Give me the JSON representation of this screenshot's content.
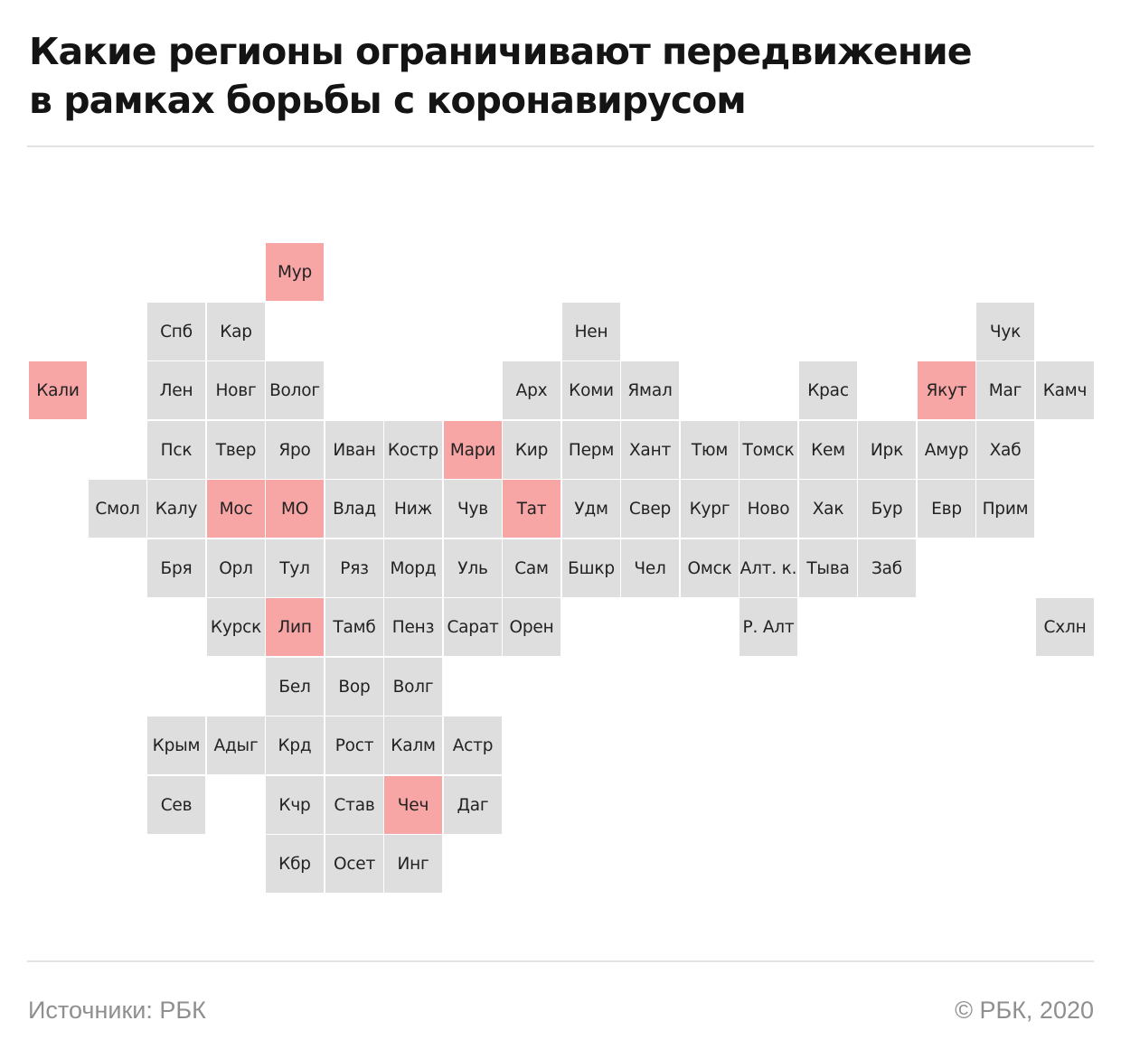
{
  "title": {
    "line1": "Какие регионы ограничивают передвижение",
    "line2": "в рамках борьбы с коронавирусом"
  },
  "colors": {
    "restricted": "#f7a5a5",
    "other": "#dedede"
  },
  "regions": [
    {
      "label": "Мур",
      "row": 0,
      "col": 4,
      "restricted": true
    },
    {
      "label": "Спб",
      "row": 1,
      "col": 2,
      "restricted": false
    },
    {
      "label": "Кар",
      "row": 1,
      "col": 3,
      "restricted": false
    },
    {
      "label": "Нен",
      "row": 1,
      "col": 9,
      "restricted": false
    },
    {
      "label": "Чук",
      "row": 1,
      "col": 16,
      "restricted": false
    },
    {
      "label": "Кали",
      "row": 2,
      "col": 0,
      "restricted": true
    },
    {
      "label": "Лен",
      "row": 2,
      "col": 2,
      "restricted": false
    },
    {
      "label": "Новг",
      "row": 2,
      "col": 3,
      "restricted": false
    },
    {
      "label": "Волог",
      "row": 2,
      "col": 4,
      "restricted": false
    },
    {
      "label": "Арх",
      "row": 2,
      "col": 8,
      "restricted": false
    },
    {
      "label": "Коми",
      "row": 2,
      "col": 9,
      "restricted": false
    },
    {
      "label": "Ямал",
      "row": 2,
      "col": 10,
      "restricted": false
    },
    {
      "label": "Крас",
      "row": 2,
      "col": 13,
      "restricted": false
    },
    {
      "label": "Якут",
      "row": 2,
      "col": 15,
      "restricted": true
    },
    {
      "label": "Маг",
      "row": 2,
      "col": 16,
      "restricted": false
    },
    {
      "label": "Камч",
      "row": 2,
      "col": 17,
      "restricted": false
    },
    {
      "label": "Пск",
      "row": 3,
      "col": 2,
      "restricted": false
    },
    {
      "label": "Твер",
      "row": 3,
      "col": 3,
      "restricted": false
    },
    {
      "label": "Яро",
      "row": 3,
      "col": 4,
      "restricted": false
    },
    {
      "label": "Иван",
      "row": 3,
      "col": 5,
      "restricted": false
    },
    {
      "label": "Костр",
      "row": 3,
      "col": 6,
      "restricted": false
    },
    {
      "label": "Мари",
      "row": 3,
      "col": 7,
      "restricted": true
    },
    {
      "label": "Кир",
      "row": 3,
      "col": 8,
      "restricted": false
    },
    {
      "label": "Перм",
      "row": 3,
      "col": 9,
      "restricted": false
    },
    {
      "label": "Хант",
      "row": 3,
      "col": 10,
      "restricted": false
    },
    {
      "label": "Тюм",
      "row": 3,
      "col": 11,
      "restricted": false
    },
    {
      "label": "Томск",
      "row": 3,
      "col": 12,
      "restricted": false
    },
    {
      "label": "Кем",
      "row": 3,
      "col": 13,
      "restricted": false
    },
    {
      "label": "Ирк",
      "row": 3,
      "col": 14,
      "restricted": false
    },
    {
      "label": "Амур",
      "row": 3,
      "col": 15,
      "restricted": false
    },
    {
      "label": "Хаб",
      "row": 3,
      "col": 16,
      "restricted": false
    },
    {
      "label": "Смол",
      "row": 4,
      "col": 1,
      "restricted": false
    },
    {
      "label": "Калу",
      "row": 4,
      "col": 2,
      "restricted": false
    },
    {
      "label": "Мос",
      "row": 4,
      "col": 3,
      "restricted": true
    },
    {
      "label": "МО",
      "row": 4,
      "col": 4,
      "restricted": true
    },
    {
      "label": "Влад",
      "row": 4,
      "col": 5,
      "restricted": false
    },
    {
      "label": "Ниж",
      "row": 4,
      "col": 6,
      "restricted": false
    },
    {
      "label": "Чув",
      "row": 4,
      "col": 7,
      "restricted": false
    },
    {
      "label": "Тат",
      "row": 4,
      "col": 8,
      "restricted": true
    },
    {
      "label": "Удм",
      "row": 4,
      "col": 9,
      "restricted": false
    },
    {
      "label": "Свер",
      "row": 4,
      "col": 10,
      "restricted": false
    },
    {
      "label": "Кург",
      "row": 4,
      "col": 11,
      "restricted": false
    },
    {
      "label": "Ново",
      "row": 4,
      "col": 12,
      "restricted": false
    },
    {
      "label": "Хак",
      "row": 4,
      "col": 13,
      "restricted": false
    },
    {
      "label": "Бур",
      "row": 4,
      "col": 14,
      "restricted": false
    },
    {
      "label": "Евр",
      "row": 4,
      "col": 15,
      "restricted": false
    },
    {
      "label": "Прим",
      "row": 4,
      "col": 16,
      "restricted": false
    },
    {
      "label": "Бря",
      "row": 5,
      "col": 2,
      "restricted": false
    },
    {
      "label": "Орл",
      "row": 5,
      "col": 3,
      "restricted": false
    },
    {
      "label": "Тул",
      "row": 5,
      "col": 4,
      "restricted": false
    },
    {
      "label": "Ряз",
      "row": 5,
      "col": 5,
      "restricted": false
    },
    {
      "label": "Морд",
      "row": 5,
      "col": 6,
      "restricted": false
    },
    {
      "label": "Уль",
      "row": 5,
      "col": 7,
      "restricted": false
    },
    {
      "label": "Сам",
      "row": 5,
      "col": 8,
      "restricted": false
    },
    {
      "label": "Бшкр",
      "row": 5,
      "col": 9,
      "restricted": false
    },
    {
      "label": "Чел",
      "row": 5,
      "col": 10,
      "restricted": false
    },
    {
      "label": "Омск",
      "row": 5,
      "col": 11,
      "restricted": false
    },
    {
      "label": "Алт. к.",
      "row": 5,
      "col": 12,
      "restricted": false
    },
    {
      "label": "Тыва",
      "row": 5,
      "col": 13,
      "restricted": false
    },
    {
      "label": "Заб",
      "row": 5,
      "col": 14,
      "restricted": false
    },
    {
      "label": "Курск",
      "row": 6,
      "col": 3,
      "restricted": false
    },
    {
      "label": "Лип",
      "row": 6,
      "col": 4,
      "restricted": true
    },
    {
      "label": "Тамб",
      "row": 6,
      "col": 5,
      "restricted": false
    },
    {
      "label": "Пенз",
      "row": 6,
      "col": 6,
      "restricted": false
    },
    {
      "label": "Сарат",
      "row": 6,
      "col": 7,
      "restricted": false
    },
    {
      "label": "Орен",
      "row": 6,
      "col": 8,
      "restricted": false
    },
    {
      "label": "Р. Алт",
      "row": 6,
      "col": 12,
      "restricted": false
    },
    {
      "label": "Схлн",
      "row": 6,
      "col": 17,
      "restricted": false
    },
    {
      "label": "Бел",
      "row": 7,
      "col": 4,
      "restricted": false
    },
    {
      "label": "Вор",
      "row": 7,
      "col": 5,
      "restricted": false
    },
    {
      "label": "Волг",
      "row": 7,
      "col": 6,
      "restricted": false
    },
    {
      "label": "Крым",
      "row": 8,
      "col": 2,
      "restricted": false
    },
    {
      "label": "Адыг",
      "row": 8,
      "col": 3,
      "restricted": false
    },
    {
      "label": "Крд",
      "row": 8,
      "col": 4,
      "restricted": false
    },
    {
      "label": "Рост",
      "row": 8,
      "col": 5,
      "restricted": false
    },
    {
      "label": "Калм",
      "row": 8,
      "col": 6,
      "restricted": false
    },
    {
      "label": "Астр",
      "row": 8,
      "col": 7,
      "restricted": false
    },
    {
      "label": "Сев",
      "row": 9,
      "col": 2,
      "restricted": false
    },
    {
      "label": "Кчр",
      "row": 9,
      "col": 4,
      "restricted": false
    },
    {
      "label": "Став",
      "row": 9,
      "col": 5,
      "restricted": false
    },
    {
      "label": "Чеч",
      "row": 9,
      "col": 6,
      "restricted": true
    },
    {
      "label": "Даг",
      "row": 9,
      "col": 7,
      "restricted": false
    },
    {
      "label": "Кбр",
      "row": 10,
      "col": 4,
      "restricted": false
    },
    {
      "label": "Осет",
      "row": 10,
      "col": 5,
      "restricted": false
    },
    {
      "label": "Инг",
      "row": 10,
      "col": 6,
      "restricted": false
    }
  ],
  "footer": {
    "source": "Источники: РБК",
    "copyright": "© РБК, 2020"
  }
}
